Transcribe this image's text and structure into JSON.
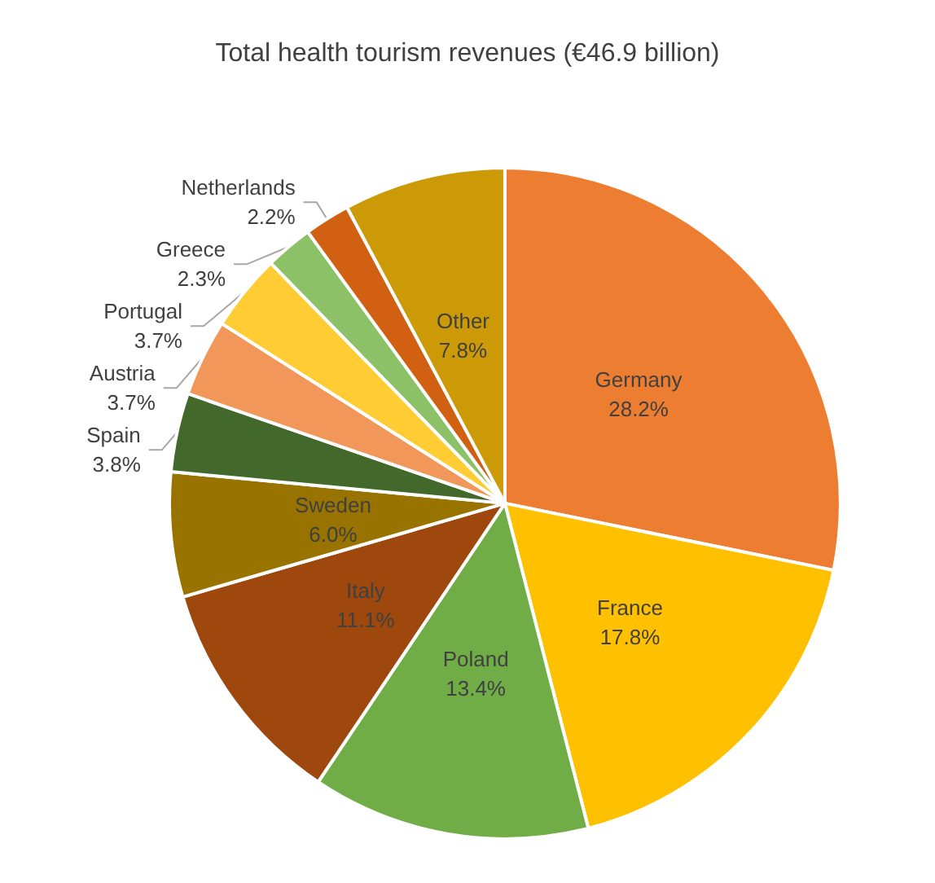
{
  "chart_data": {
    "type": "pie",
    "title": "Total health tourism revenues (€46.9 billion)",
    "categories": [
      "Germany",
      "France",
      "Poland",
      "Italy",
      "Sweden",
      "Spain",
      "Austria",
      "Portugal",
      "Greece",
      "Netherlands",
      "Other"
    ],
    "values": [
      28.2,
      17.8,
      13.4,
      11.1,
      6.0,
      3.8,
      3.7,
      3.7,
      2.3,
      2.2,
      7.8
    ],
    "value_labels": [
      "28.2%",
      "17.8%",
      "13.4%",
      "11.1%",
      "6.0%",
      "3.8%",
      "3.7%",
      "3.7%",
      "2.3%",
      "2.2%",
      "7.8%"
    ],
    "colors": [
      "#ed7d31",
      "#ffc000",
      "#70ad47",
      "#9e480e",
      "#997300",
      "#43682b",
      "#f1975a",
      "#ffcd33",
      "#8cc168",
      "#d26012",
      "#cc9a06"
    ],
    "legend": false
  }
}
